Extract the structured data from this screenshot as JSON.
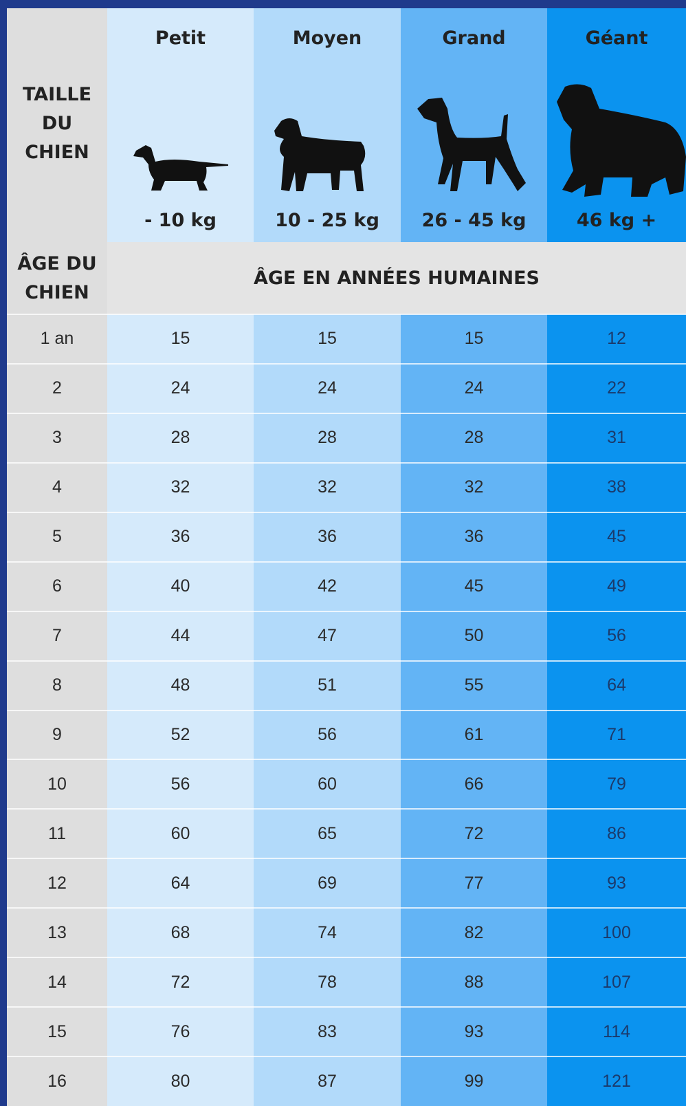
{
  "header": {
    "size_label": "TAILLE DU CHIEN",
    "age_label": "ÂGE DU CHIEN",
    "human_age_label": "ÂGE EN ANNÉES HUMAINES"
  },
  "columns": [
    {
      "name": "Petit",
      "weight": "- 10 kg"
    },
    {
      "name": "Moyen",
      "weight": "10 - 25 kg"
    },
    {
      "name": "Grand",
      "weight": "26 - 45 kg"
    },
    {
      "name": "Géant",
      "weight": "46 kg +"
    }
  ],
  "rows": [
    {
      "age": "1 an",
      "values": [
        15,
        15,
        15,
        12
      ]
    },
    {
      "age": "2",
      "values": [
        24,
        24,
        24,
        22
      ]
    },
    {
      "age": "3",
      "values": [
        28,
        28,
        28,
        31
      ]
    },
    {
      "age": "4",
      "values": [
        32,
        32,
        32,
        38
      ]
    },
    {
      "age": "5",
      "values": [
        36,
        36,
        36,
        45
      ]
    },
    {
      "age": "6",
      "values": [
        40,
        42,
        45,
        49
      ]
    },
    {
      "age": "7",
      "values": [
        44,
        47,
        50,
        56
      ]
    },
    {
      "age": "8",
      "values": [
        48,
        51,
        55,
        64
      ]
    },
    {
      "age": "9",
      "values": [
        52,
        56,
        61,
        71
      ]
    },
    {
      "age": "10",
      "values": [
        56,
        60,
        66,
        79
      ]
    },
    {
      "age": "11",
      "values": [
        60,
        65,
        72,
        86
      ]
    },
    {
      "age": "12",
      "values": [
        64,
        69,
        77,
        93
      ]
    },
    {
      "age": "13",
      "values": [
        68,
        74,
        82,
        100
      ]
    },
    {
      "age": "14",
      "values": [
        72,
        78,
        88,
        107
      ]
    },
    {
      "age": "15",
      "values": [
        76,
        83,
        93,
        114
      ]
    },
    {
      "age": "16",
      "values": [
        80,
        87,
        99,
        121
      ]
    }
  ]
}
